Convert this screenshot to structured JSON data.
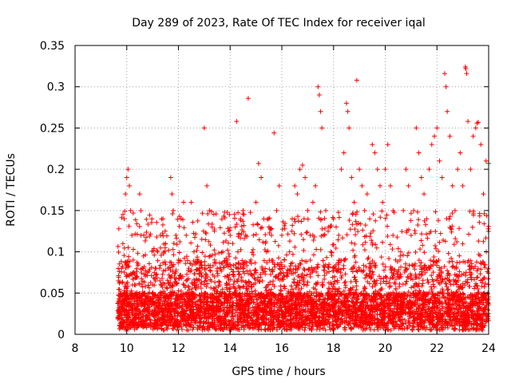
{
  "chart_data": {
    "type": "scatter",
    "title": "Day 289 of 2023, Rate Of TEC Index for receiver iqal",
    "xlabel": "GPS time / hours",
    "ylabel": "ROTI / TECUs",
    "xlim": [
      8,
      24
    ],
    "ylim": [
      0,
      0.35
    ],
    "x_ticks": [
      "8",
      "10",
      "12",
      "14",
      "16",
      "18",
      "20",
      "22",
      "24"
    ],
    "y_ticks": [
      "0",
      "0.05",
      "0.1",
      "0.15",
      "0.2",
      "0.25",
      "0.3",
      "0.35"
    ],
    "grid": true,
    "marker": "+",
    "color": "#ff0000",
    "series": [
      {
        "points": [
          [
            9.7,
            0.02
          ],
          [
            9.75,
            0.05
          ],
          [
            9.8,
            0.08
          ],
          [
            9.85,
            0.11
          ],
          [
            9.9,
            0.14
          ],
          [
            9.95,
            0.17
          ],
          [
            10.0,
            0.19
          ],
          [
            10.05,
            0.2
          ],
          [
            10.1,
            0.18
          ],
          [
            10.15,
            0.15
          ],
          [
            10.2,
            0.12
          ],
          [
            10.25,
            0.09
          ],
          [
            10.3,
            0.06
          ],
          [
            10.35,
            0.04
          ],
          [
            10.4,
            0.07
          ],
          [
            10.5,
            0.17
          ],
          [
            10.55,
            0.12
          ],
          [
            10.6,
            0.08
          ],
          [
            10.7,
            0.05
          ],
          [
            10.8,
            0.03
          ],
          [
            10.9,
            0.04
          ],
          [
            11.0,
            0.06
          ],
          [
            11.1,
            0.08
          ],
          [
            11.2,
            0.1
          ],
          [
            11.3,
            0.12
          ],
          [
            11.4,
            0.14
          ],
          [
            11.5,
            0.11
          ],
          [
            11.6,
            0.08
          ],
          [
            11.7,
            0.19
          ],
          [
            11.75,
            0.17
          ],
          [
            11.8,
            0.15
          ],
          [
            11.9,
            0.12
          ],
          [
            12.0,
            0.09
          ],
          [
            12.1,
            0.14
          ],
          [
            12.2,
            0.16
          ],
          [
            12.3,
            0.12
          ],
          [
            12.4,
            0.08
          ],
          [
            12.5,
            0.16
          ],
          [
            12.6,
            0.1
          ],
          [
            12.7,
            0.06
          ],
          [
            12.8,
            0.08
          ],
          [
            12.9,
            0.07
          ],
          [
            13.0,
            0.25
          ],
          [
            13.1,
            0.18
          ],
          [
            13.2,
            0.15
          ],
          [
            13.3,
            0.13
          ],
          [
            13.4,
            0.09
          ],
          [
            13.5,
            0.08
          ],
          [
            13.6,
            0.06
          ],
          [
            13.7,
            0.05
          ],
          [
            13.8,
            0.07
          ],
          [
            13.9,
            0.09
          ],
          [
            14.0,
            0.12
          ],
          [
            14.1,
            0.11
          ],
          [
            14.2,
            0.13
          ],
          [
            14.25,
            0.258
          ],
          [
            14.3,
            0.1
          ],
          [
            14.4,
            0.14
          ],
          [
            14.5,
            0.15
          ],
          [
            14.6,
            0.12
          ],
          [
            14.7,
            0.286
          ],
          [
            14.8,
            0.09
          ],
          [
            14.9,
            0.12
          ],
          [
            15.0,
            0.16
          ],
          [
            15.1,
            0.207
          ],
          [
            15.2,
            0.19
          ],
          [
            15.3,
            0.14
          ],
          [
            15.4,
            0.1
          ],
          [
            15.5,
            0.13
          ],
          [
            15.6,
            0.12
          ],
          [
            15.7,
            0.244
          ],
          [
            15.8,
            0.15
          ],
          [
            15.9,
            0.18
          ],
          [
            16.0,
            0.12
          ],
          [
            16.1,
            0.09
          ],
          [
            16.2,
            0.07
          ],
          [
            16.3,
            0.1
          ],
          [
            16.4,
            0.14
          ],
          [
            16.5,
            0.18
          ],
          [
            16.6,
            0.17
          ],
          [
            16.7,
            0.2
          ],
          [
            16.8,
            0.205
          ],
          [
            16.9,
            0.19
          ],
          [
            17.0,
            0.15
          ],
          [
            17.1,
            0.12
          ],
          [
            17.2,
            0.16
          ],
          [
            17.3,
            0.18
          ],
          [
            17.4,
            0.3
          ],
          [
            17.45,
            0.29
          ],
          [
            17.5,
            0.27
          ],
          [
            17.55,
            0.25
          ],
          [
            17.6,
            0.12
          ],
          [
            17.7,
            0.15
          ],
          [
            17.8,
            0.13
          ],
          [
            17.9,
            0.1
          ],
          [
            18.0,
            0.14
          ],
          [
            18.1,
            0.13
          ],
          [
            18.2,
            0.12
          ],
          [
            18.3,
            0.2
          ],
          [
            18.4,
            0.22
          ],
          [
            18.5,
            0.28
          ],
          [
            18.55,
            0.27
          ],
          [
            18.6,
            0.25
          ],
          [
            18.7,
            0.19
          ],
          [
            18.8,
            0.16
          ],
          [
            18.9,
            0.308
          ],
          [
            19.0,
            0.2
          ],
          [
            19.1,
            0.18
          ],
          [
            19.2,
            0.15
          ],
          [
            19.3,
            0.17
          ],
          [
            19.4,
            0.14
          ],
          [
            19.5,
            0.23
          ],
          [
            19.6,
            0.22
          ],
          [
            19.7,
            0.2
          ],
          [
            19.8,
            0.18
          ],
          [
            19.9,
            0.16
          ],
          [
            20.0,
            0.2
          ],
          [
            20.1,
            0.23
          ],
          [
            20.2,
            0.18
          ],
          [
            20.3,
            0.12
          ],
          [
            20.4,
            0.09
          ],
          [
            20.5,
            0.07
          ],
          [
            20.6,
            0.1
          ],
          [
            20.7,
            0.15
          ],
          [
            20.8,
            0.2
          ],
          [
            20.9,
            0.18
          ],
          [
            21.0,
            0.12
          ],
          [
            21.1,
            0.15
          ],
          [
            21.2,
            0.25
          ],
          [
            21.3,
            0.22
          ],
          [
            21.4,
            0.19
          ],
          [
            21.5,
            0.17
          ],
          [
            21.6,
            0.14
          ],
          [
            21.7,
            0.2
          ],
          [
            21.8,
            0.23
          ],
          [
            21.9,
            0.24
          ],
          [
            22.0,
            0.25
          ],
          [
            22.1,
            0.21
          ],
          [
            22.2,
            0.19
          ],
          [
            22.3,
            0.316
          ],
          [
            22.35,
            0.3
          ],
          [
            22.4,
            0.27
          ],
          [
            22.5,
            0.24
          ],
          [
            22.6,
            0.18
          ],
          [
            22.7,
            0.15
          ],
          [
            22.8,
            0.2
          ],
          [
            22.9,
            0.22
          ],
          [
            23.0,
            0.18
          ],
          [
            23.1,
            0.324
          ],
          [
            23.12,
            0.322
          ],
          [
            23.15,
            0.316
          ],
          [
            23.2,
            0.258
          ],
          [
            23.3,
            0.2
          ],
          [
            23.4,
            0.24
          ],
          [
            23.5,
            0.25
          ],
          [
            23.55,
            0.256
          ],
          [
            23.6,
            0.257
          ],
          [
            23.7,
            0.23
          ],
          [
            23.8,
            0.17
          ],
          [
            23.9,
            0.21
          ],
          [
            24.0,
            0.207
          ]
        ]
      }
    ]
  }
}
